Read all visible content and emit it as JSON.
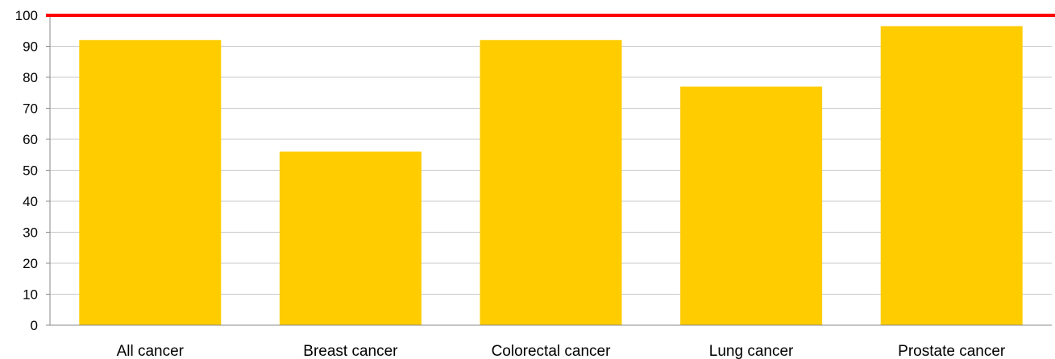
{
  "chart_data": {
    "type": "bar",
    "categories": [
      "All cancer",
      "Breast cancer",
      "Colorectal cancer",
      "Lung cancer",
      "Prostate cancer"
    ],
    "values": [
      92,
      56,
      92,
      77,
      96.5
    ],
    "ylim": [
      0,
      100
    ],
    "yticks": [
      "0",
      "10",
      "20",
      "30",
      "40",
      "50",
      "60",
      "70",
      "80",
      "90",
      "100"
    ],
    "grid": true,
    "legend": "none",
    "reference_line": {
      "value": 100,
      "color": "#ff0000"
    },
    "colors": {
      "bar": "#ffcc00",
      "grid": "#c8c8c8",
      "axis": "#888888"
    }
  }
}
